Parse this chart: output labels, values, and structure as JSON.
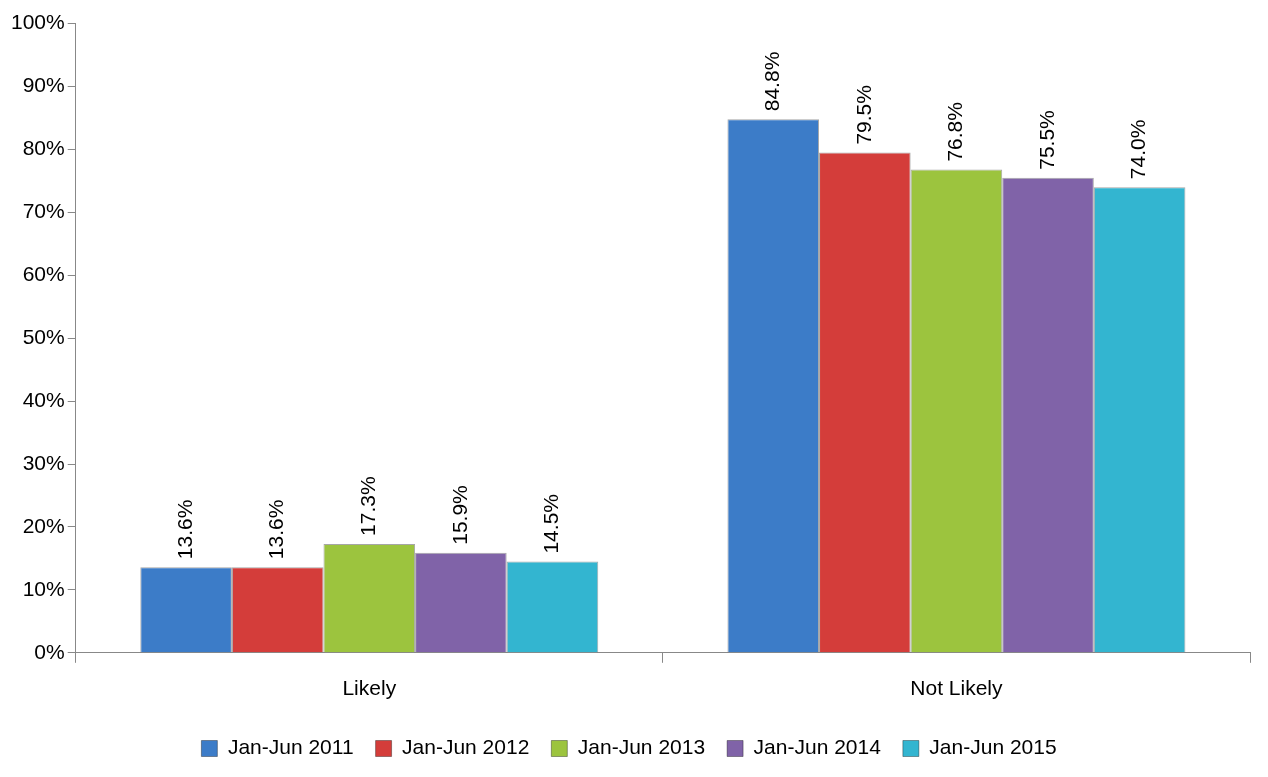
{
  "chart_data": {
    "type": "bar",
    "categories": [
      "Likely",
      "Not Likely"
    ],
    "series": [
      {
        "name": "Jan-Jun 2011",
        "color": "#3c7cc8",
        "values": [
          13.6,
          84.8
        ],
        "value_labels": [
          "13.6%",
          "84.8%"
        ]
      },
      {
        "name": "Jan-Jun 2012",
        "color": "#d43d3a",
        "values": [
          13.6,
          79.5
        ],
        "value_labels": [
          "13.6%",
          "79.5%"
        ]
      },
      {
        "name": "Jan-Jun 2013",
        "color": "#9cc43e",
        "values": [
          17.3,
          76.8
        ],
        "value_labels": [
          "17.3%",
          "76.8%"
        ]
      },
      {
        "name": "Jan-Jun 2014",
        "color": "#8063a8",
        "values": [
          15.9,
          75.5
        ],
        "value_labels": [
          "15.9%",
          "75.5%"
        ]
      },
      {
        "name": "Jan-Jun 2015",
        "color": "#33b5d0",
        "values": [
          14.5,
          74.0
        ],
        "value_labels": [
          "14.5%",
          "74.0%"
        ]
      }
    ],
    "ylim": [
      0,
      100
    ],
    "yticks": [
      {
        "value": 0,
        "label": "0%"
      },
      {
        "value": 10,
        "label": "10%"
      },
      {
        "value": 20,
        "label": "20%"
      },
      {
        "value": 30,
        "label": "30%"
      },
      {
        "value": 40,
        "label": "40%"
      },
      {
        "value": 50,
        "label": "50%"
      },
      {
        "value": 60,
        "label": "60%"
      },
      {
        "value": 70,
        "label": "70%"
      },
      {
        "value": 80,
        "label": "80%"
      },
      {
        "value": 90,
        "label": "90%"
      },
      {
        "value": 100,
        "label": "100%"
      }
    ],
    "grid": false,
    "legend": "bottom"
  }
}
